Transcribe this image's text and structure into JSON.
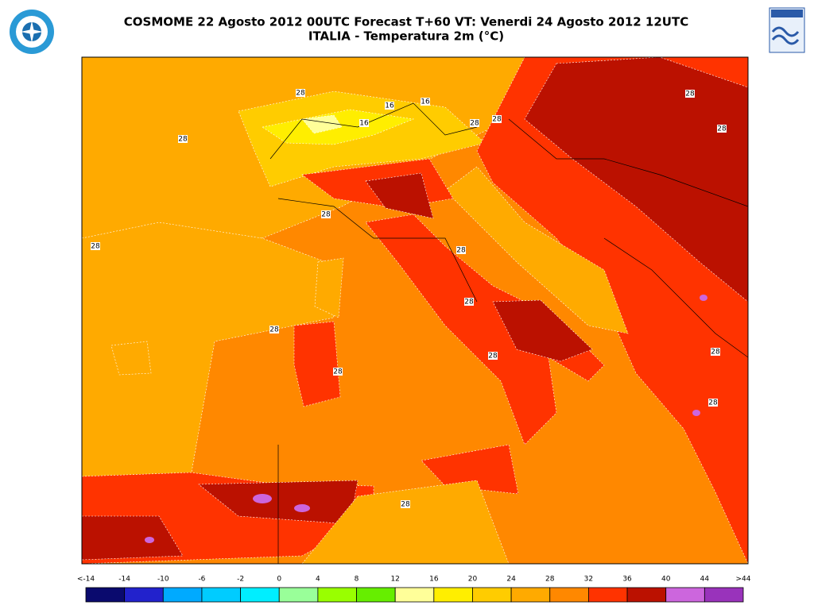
{
  "header": {
    "title": "COSMOME 22 Agosto 2012 00UTC Forecast T+60 VT: Venerdi 24 Agosto 2012 12UTC",
    "subtitle": "ITALIA - Temperatura 2m (°C)"
  },
  "map": {
    "contour_labels": [
      "28",
      "16",
      "16",
      "16",
      "28",
      "28",
      "28",
      "28",
      "28",
      "28",
      "28",
      "28",
      "28",
      "28",
      "28",
      "28",
      "28",
      "28",
      "28"
    ]
  },
  "colorbar": {
    "labels": [
      "<-14",
      "-14",
      "-10",
      "-6",
      "-2",
      "0",
      "4",
      "8",
      "12",
      "16",
      "20",
      "24",
      "28",
      "32",
      "36",
      "40",
      "44",
      ">44"
    ],
    "colors": [
      "#0a0a6e",
      "#2222cc",
      "#00aaff",
      "#00ccff",
      "#00eeff",
      "#99ff99",
      "#99ff00",
      "#66ee00",
      "#ffff99",
      "#ffee00",
      "#ffcc00",
      "#ffaa00",
      "#ff8800",
      "#ff3300",
      "#bb1100",
      "#cc66dd",
      "#9933bb"
    ]
  }
}
